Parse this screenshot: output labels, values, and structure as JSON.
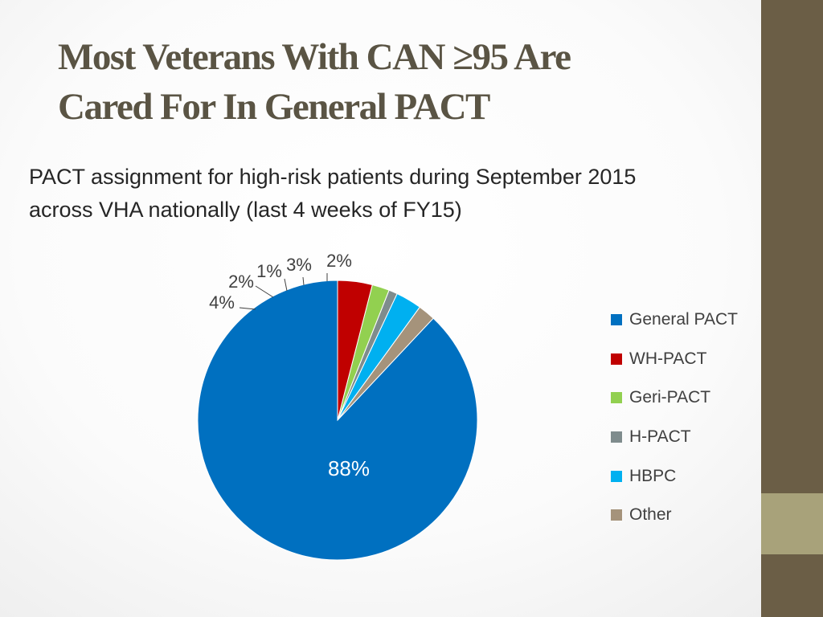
{
  "slide": {
    "title_line1": "Most Veterans With CAN ≥95 Are",
    "title_line2": "Cared For In General PACT",
    "subtitle_line1": "PACT assignment for high-risk patients during September 2015",
    "subtitle_line2": "across VHA nationally (last 4 weeks of FY15)"
  },
  "chart_data": {
    "type": "pie",
    "title": "",
    "legend_position": "right",
    "categories": [
      "General PACT",
      "WH-PACT",
      "Geri-PACT",
      "H-PACT",
      "HBPC",
      "Other"
    ],
    "values": [
      88,
      4,
      2,
      1,
      3,
      2
    ],
    "labels": [
      "88%",
      "4%",
      "2%",
      "1%",
      "3%",
      "2%"
    ],
    "colors": [
      "#0070c0",
      "#c00000",
      "#92d050",
      "#7f8c8d",
      "#00b0f0",
      "#a5937b"
    ]
  }
}
